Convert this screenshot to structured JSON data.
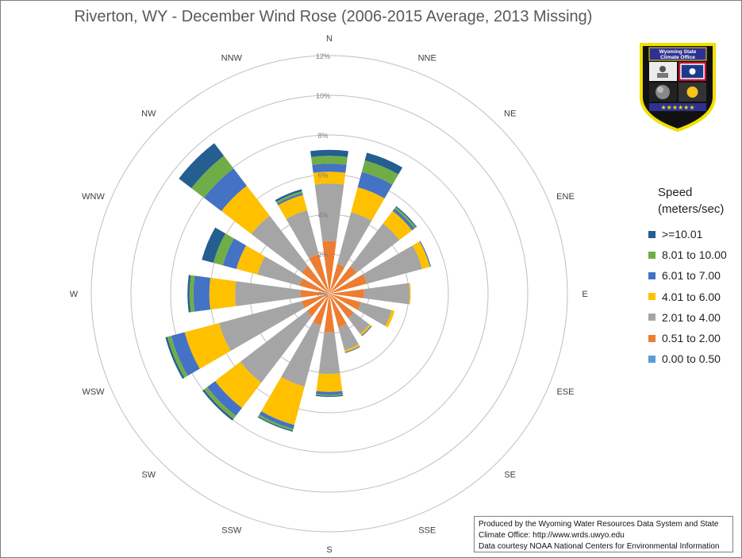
{
  "chart_data": {
    "type": "wind-rose",
    "title": "Riverton, WY - December Wind Rose (2006-2015 Average, 2013 Missing)",
    "directions": [
      "N",
      "NNE",
      "NE",
      "ENE",
      "E",
      "ESE",
      "SE",
      "SSE",
      "S",
      "SSW",
      "SW",
      "WSW",
      "W",
      "WNW",
      "NW",
      "NNW"
    ],
    "radial_ticks": [
      "0%",
      "2%",
      "4%",
      "6%",
      "8%",
      "10%",
      "12%"
    ],
    "radial_max": 12,
    "radial_unit": "%",
    "legend_title": [
      "Speed",
      "(meters/sec)"
    ],
    "series": [
      {
        "name": "0.00 to 0.50",
        "color": "#5b9bd5",
        "values": [
          0.05,
          0.05,
          0.05,
          0.05,
          0.05,
          0.05,
          0.05,
          0.05,
          0.05,
          0.05,
          0.05,
          0.05,
          0.05,
          0.05,
          0.05,
          0.05
        ]
      },
      {
        "name": "0.51 to 2.00",
        "color": "#ed7d31",
        "values": [
          2.6,
          1.5,
          1.7,
          1.9,
          1.7,
          1.6,
          1.5,
          1.7,
          1.9,
          1.6,
          1.4,
          1.4,
          1.4,
          1.5,
          1.7,
          2.0
        ]
      },
      {
        "name": "2.01 to 4.00",
        "color": "#a5a5a5",
        "values": [
          2.9,
          2.7,
          2.7,
          2.9,
          2.3,
          1.6,
          1.0,
          1.2,
          2.1,
          3.2,
          4.2,
          4.3,
          3.3,
          2.2,
          3.2,
          2.3
        ]
      },
      {
        "name": "4.01 to 6.00",
        "color": "#ffc000",
        "values": [
          0.6,
          1.3,
          0.8,
          0.4,
          0.05,
          0.15,
          0.1,
          0.1,
          0.9,
          2.0,
          1.6,
          1.8,
          1.3,
          1.1,
          1.9,
          0.8
        ]
      },
      {
        "name": "6.01 to 7.00",
        "color": "#4472c4",
        "values": [
          0.4,
          0.8,
          0.15,
          0.05,
          0.0,
          0.0,
          0.05,
          0.05,
          0.15,
          0.2,
          0.5,
          0.7,
          0.8,
          0.7,
          1.1,
          0.1
        ]
      },
      {
        "name": "8.01 to 10.00",
        "color": "#70ad47",
        "values": [
          0.4,
          0.6,
          0.1,
          0.0,
          0.0,
          0.0,
          0.0,
          0.0,
          0.05,
          0.1,
          0.2,
          0.2,
          0.2,
          0.5,
          0.8,
          0.1
        ]
      },
      {
        "name": ">=10.01",
        "color": "#255e91",
        "values": [
          0.3,
          0.4,
          0.05,
          0.0,
          0.0,
          0.0,
          0.0,
          0.0,
          0.05,
          0.05,
          0.1,
          0.1,
          0.1,
          0.6,
          0.8,
          0.1
        ]
      }
    ]
  },
  "credit": {
    "line1": "Produced by the Wyoming Water Resources Data System and State",
    "line2": "Climate Office: http://www.wrds.uwyo.edu",
    "line3": "Data courtesy NOAA National Centers for Environmental Information"
  },
  "seal": {
    "text_top": "Wyoming State",
    "text_bottom": "Climate Office",
    "stars": "★★★★★★",
    "colors": {
      "outer": "#111111",
      "border": "#f0e000",
      "banner": "#2e3192",
      "flag_blue": "#1e3a8a",
      "flag_red": "#c8102e",
      "sun": "#f7c21a"
    }
  },
  "colors": {
    "grid": "#bfbfbf",
    "title": "#595959",
    "axis_text": "#404040"
  }
}
